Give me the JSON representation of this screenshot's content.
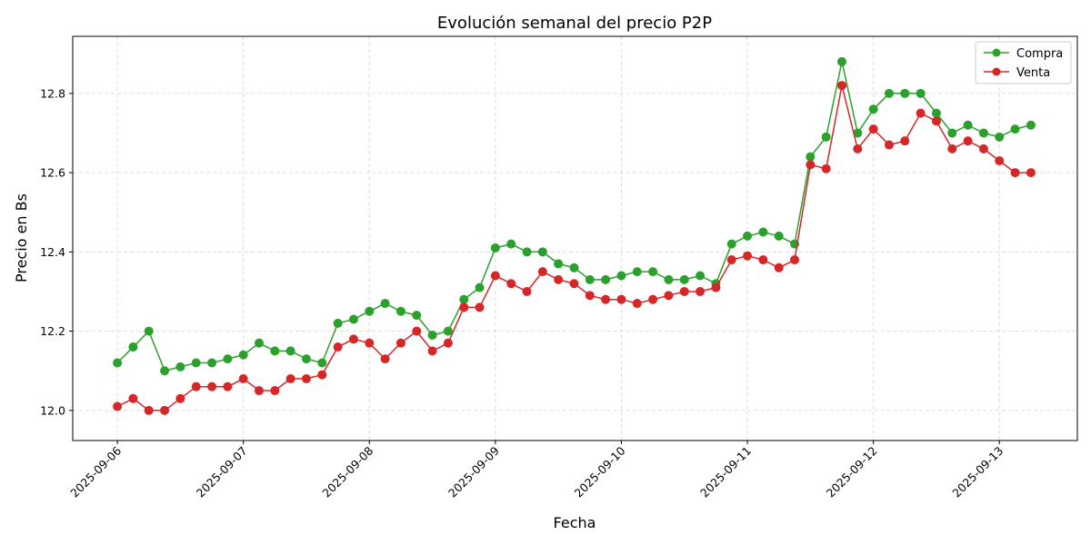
{
  "chart_data": {
    "type": "line",
    "title": "Evolución semanal del precio P2P",
    "xlabel": "Fecha",
    "ylabel": "Precio en Bs",
    "xlim": [
      "2025-09-05 15:30",
      "2025-09-13 14:51"
    ],
    "ylim": [
      11.924,
      12.944
    ],
    "yticks": [
      12.0,
      12.2,
      12.4,
      12.6,
      12.8
    ],
    "ytick_labels": [
      "12.0",
      "12.2",
      "12.4",
      "12.6",
      "12.8"
    ],
    "xticks": [
      "2025-09-06",
      "2025-09-07",
      "2025-09-08",
      "2025-09-09",
      "2025-09-10",
      "2025-09-11",
      "2025-09-12",
      "2025-09-13"
    ],
    "grid": true,
    "legend_position": "top-right",
    "x": [
      "2025-09-06 00:00",
      "2025-09-06 03:00",
      "2025-09-06 06:00",
      "2025-09-06 09:00",
      "2025-09-06 12:00",
      "2025-09-06 15:00",
      "2025-09-06 18:00",
      "2025-09-06 21:00",
      "2025-09-07 00:00",
      "2025-09-07 03:00",
      "2025-09-07 06:00",
      "2025-09-07 09:00",
      "2025-09-07 12:00",
      "2025-09-07 15:00",
      "2025-09-07 18:00",
      "2025-09-07 21:00",
      "2025-09-08 00:00",
      "2025-09-08 03:00",
      "2025-09-08 06:00",
      "2025-09-08 09:00",
      "2025-09-08 12:00",
      "2025-09-08 15:00",
      "2025-09-08 18:00",
      "2025-09-08 21:00",
      "2025-09-09 00:00",
      "2025-09-09 03:00",
      "2025-09-09 06:00",
      "2025-09-09 09:00",
      "2025-09-09 12:00",
      "2025-09-09 15:00",
      "2025-09-09 18:00",
      "2025-09-09 21:00",
      "2025-09-10 00:00",
      "2025-09-10 03:00",
      "2025-09-10 06:00",
      "2025-09-10 09:00",
      "2025-09-10 12:00",
      "2025-09-10 15:00",
      "2025-09-10 18:00",
      "2025-09-10 21:00",
      "2025-09-11 00:00",
      "2025-09-11 03:00",
      "2025-09-11 06:00",
      "2025-09-11 09:00",
      "2025-09-11 12:00",
      "2025-09-11 15:00",
      "2025-09-11 18:00",
      "2025-09-11 21:00",
      "2025-09-12 00:00",
      "2025-09-12 03:00",
      "2025-09-12 06:00",
      "2025-09-12 09:00",
      "2025-09-12 12:00",
      "2025-09-12 15:00",
      "2025-09-12 18:00",
      "2025-09-12 21:00",
      "2025-09-13 00:00",
      "2025-09-13 03:00",
      "2025-09-13 06:00"
    ],
    "series": [
      {
        "name": "Compra",
        "color": "#2ca02c",
        "marker": "circle",
        "values": [
          12.12,
          12.16,
          12.2,
          12.1,
          12.11,
          12.12,
          12.12,
          12.13,
          12.14,
          12.17,
          12.15,
          12.15,
          12.13,
          12.12,
          12.22,
          12.23,
          12.25,
          12.27,
          12.25,
          12.24,
          12.19,
          12.2,
          12.28,
          12.31,
          12.41,
          12.42,
          12.4,
          12.4,
          12.37,
          12.36,
          12.33,
          12.33,
          12.34,
          12.35,
          12.35,
          12.33,
          12.33,
          12.34,
          12.32,
          12.42,
          12.44,
          12.45,
          12.44,
          12.42,
          12.64,
          12.69,
          12.88,
          12.7,
          12.76,
          12.8,
          12.8,
          12.8,
          12.75,
          12.7,
          12.72,
          12.7,
          12.69,
          12.71,
          12.72
        ]
      },
      {
        "name": "Venta",
        "color": "#d62728",
        "marker": "circle",
        "values": [
          12.01,
          12.03,
          12.0,
          12.0,
          12.03,
          12.06,
          12.06,
          12.06,
          12.08,
          12.05,
          12.05,
          12.08,
          12.08,
          12.09,
          12.16,
          12.18,
          12.17,
          12.13,
          12.17,
          12.2,
          12.15,
          12.17,
          12.26,
          12.26,
          12.34,
          12.32,
          12.3,
          12.35,
          12.33,
          12.32,
          12.29,
          12.28,
          12.28,
          12.27,
          12.28,
          12.29,
          12.3,
          12.3,
          12.31,
          12.38,
          12.39,
          12.38,
          12.36,
          12.38,
          12.62,
          12.61,
          12.82,
          12.66,
          12.71,
          12.67,
          12.68,
          12.75,
          12.73,
          12.66,
          12.68,
          12.66,
          12.63,
          12.6,
          12.6
        ]
      }
    ]
  }
}
